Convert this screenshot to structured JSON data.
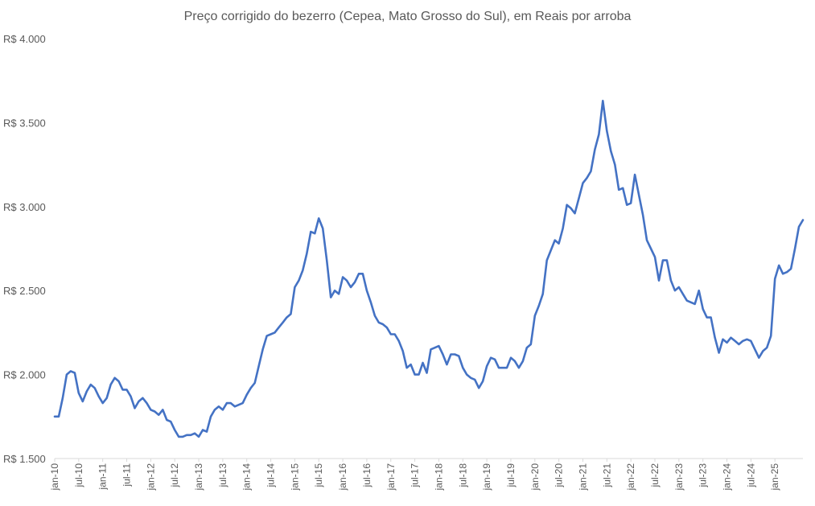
{
  "chart_data": {
    "type": "line",
    "title": "Preço corrigido do bezerro (Cepea, Mato Grosso do Sul), em Reais por arroba",
    "xlabel": "",
    "ylabel": "",
    "ylim": [
      1500,
      4000
    ],
    "y_ticks": [
      1500,
      2000,
      2500,
      3000,
      3500,
      4000
    ],
    "y_tick_labels": [
      "R$ 1.500",
      "R$ 2.000",
      "R$ 2.500",
      "R$ 3.000",
      "R$ 3.500",
      "R$ 4.000"
    ],
    "x_tick_labels": [
      "jan-10",
      "jul-10",
      "jan-11",
      "jul-11",
      "jan-12",
      "jul-12",
      "jan-13",
      "jul-13",
      "jan-14",
      "jul-14",
      "jan-15",
      "jul-15",
      "jan-16",
      "jul-16",
      "jan-17",
      "jul-17",
      "jan-18",
      "jul-18",
      "jan-19",
      "jul-19",
      "jan-20",
      "jul-20",
      "jan-21",
      "jul-21",
      "jan-22",
      "jul-22",
      "jan-23",
      "jul-23",
      "jan-24",
      "jul-24",
      "jan-25"
    ],
    "grid": false,
    "line_color": "#4472C4",
    "series": [
      {
        "values": [
          1750,
          1750,
          1860,
          2000,
          2020,
          2010,
          1890,
          1840,
          1900,
          1940,
          1920,
          1870,
          1830,
          1860,
          1940,
          1980,
          1960,
          1910,
          1910,
          1870,
          1800,
          1840,
          1860,
          1830,
          1790,
          1780,
          1760,
          1790,
          1730,
          1720,
          1670,
          1630,
          1630,
          1640,
          1640,
          1650,
          1630,
          1670,
          1660,
          1750,
          1790,
          1810,
          1790,
          1830,
          1830,
          1810,
          1820,
          1830,
          1880,
          1920,
          1950,
          2050,
          2150,
          2230,
          2240,
          2250,
          2280,
          2310,
          2340,
          2360,
          2520,
          2560,
          2620,
          2720,
          2850,
          2840,
          2930,
          2870,
          2680,
          2460,
          2500,
          2480,
          2580,
          2560,
          2520,
          2550,
          2600,
          2600,
          2500,
          2430,
          2350,
          2310,
          2300,
          2280,
          2240,
          2240,
          2200,
          2140,
          2040,
          2060,
          2000,
          2000,
          2070,
          2010,
          2150,
          2160,
          2170,
          2120,
          2060,
          2120,
          2120,
          2110,
          2040,
          2000,
          1980,
          1970,
          1920,
          1960,
          2050,
          2100,
          2090,
          2040,
          2040,
          2040,
          2100,
          2080,
          2040,
          2080,
          2160,
          2180,
          2350,
          2410,
          2480,
          2680,
          2740,
          2800,
          2780,
          2870,
          3010,
          2990,
          2960,
          3050,
          3140,
          3170,
          3210,
          3340,
          3430,
          3630,
          3450,
          3330,
          3250,
          3100,
          3110,
          3010,
          3020,
          3190,
          3070,
          2950,
          2800,
          2750,
          2700,
          2560,
          2680,
          2680,
          2560,
          2500,
          2520,
          2480,
          2440,
          2430,
          2420,
          2500,
          2390,
          2340,
          2340,
          2220,
          2130,
          2210,
          2190,
          2220,
          2200,
          2180,
          2200,
          2210,
          2200,
          2150,
          2100,
          2140,
          2160,
          2230,
          2570,
          2650,
          2600,
          2610,
          2630,
          2750,
          2880,
          2920
        ]
      }
    ]
  }
}
